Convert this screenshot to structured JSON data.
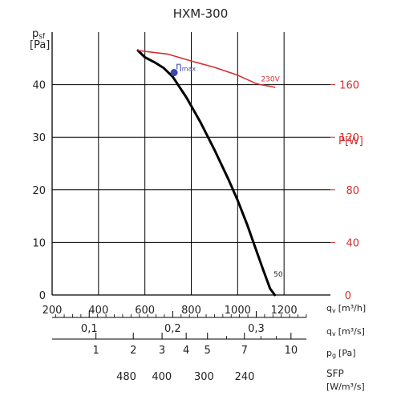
{
  "chart_data": {
    "type": "line",
    "title": "HXM-300",
    "y_axis": {
      "label_main": "p",
      "label_sub": "sf",
      "unit": "[Pa]",
      "range": [
        0,
        50
      ],
      "ticks": [
        0,
        10,
        20,
        30,
        40
      ],
      "grid": true
    },
    "y2_axis": {
      "label": "P[W]",
      "range": [
        0,
        200
      ],
      "ticks": [
        0,
        40,
        80,
        120,
        160
      ],
      "tick_labels": [
        "0",
        "40",
        "80",
        "120",
        "160"
      ]
    },
    "x_axis": {
      "label": "q",
      "label_sub": "v",
      "unit": "[m³/h]",
      "range": [
        200,
        1400
      ],
      "ticks": [
        200,
        400,
        600,
        800,
        1000,
        1200
      ],
      "grid": true
    },
    "secondary_scales": [
      {
        "label": "q",
        "label_sub": "v",
        "unit": "[m³/s]",
        "ticks": [
          {
            "x": 360,
            "label": "0,1"
          },
          {
            "x": 720,
            "label": "0,2"
          },
          {
            "x": 1080,
            "label": "0,3"
          }
        ],
        "minor_ticks": [
          216,
          252,
          288,
          324,
          396,
          432,
          468,
          504,
          540,
          576,
          612,
          648,
          684,
          756,
          792,
          828,
          864,
          900,
          936,
          972,
          1008,
          1044,
          1116,
          1152,
          1188,
          1224,
          1260,
          1296
        ]
      },
      {
        "label": "p",
        "label_sub": "g",
        "unit": "[Pa]",
        "ticks": [
          {
            "x": 389,
            "label": "1"
          },
          {
            "x": 550,
            "label": "2"
          },
          {
            "x": 674,
            "label": "3"
          },
          {
            "x": 778,
            "label": "4"
          },
          {
            "x": 870,
            "label": "5"
          },
          {
            "x": 1029,
            "label": "7"
          },
          {
            "x": 1230,
            "label": "10"
          }
        ],
        "minor_ticks": [
          952,
          1100,
          1167
        ]
      },
      {
        "label": "SFP",
        "unit": "[W/m³/s]",
        "ticks": [
          {
            "x": 520,
            "label": "480"
          },
          {
            "x": 673,
            "label": "400"
          },
          {
            "x": 855,
            "label": "300"
          },
          {
            "x": 1030,
            "label": "240"
          }
        ]
      }
    ],
    "series": [
      {
        "curve": "pressure",
        "axis": "y",
        "color": "#000000",
        "x": [
          570,
          600,
          640,
          680,
          720,
          780,
          840,
          900,
          960,
          1000,
          1040,
          1080,
          1110,
          1140,
          1160
        ],
        "y": [
          46.5,
          45.2,
          44.3,
          43.2,
          41.5,
          37.5,
          32.8,
          27.6,
          22.0,
          18.0,
          13.5,
          8.5,
          4.8,
          1.2,
          0
        ]
      },
      {
        "curve": "power",
        "axis": "y2",
        "color": "#d32f2f",
        "label": "230V",
        "x": [
          570,
          700,
          800,
          900,
          1000,
          1080,
          1100,
          1160
        ],
        "y": [
          46.5,
          45.8,
          44.5,
          43.3,
          41.8,
          40.2,
          40.0,
          39.5
        ]
      }
    ],
    "annotations": [
      {
        "type": "point",
        "x": 726,
        "y": 42.3,
        "color": "#3b49a8",
        "label_main": "η",
        "label_sub": "max"
      },
      {
        "type": "text",
        "x": 1155,
        "y": 3.5,
        "text": "50"
      }
    ]
  },
  "colors": {
    "grid": "#000000",
    "pressure_curve": "#000000",
    "power_curve": "#d32f2f",
    "power_axis": "#d32f2f",
    "eta_point": "#3b49a8"
  }
}
